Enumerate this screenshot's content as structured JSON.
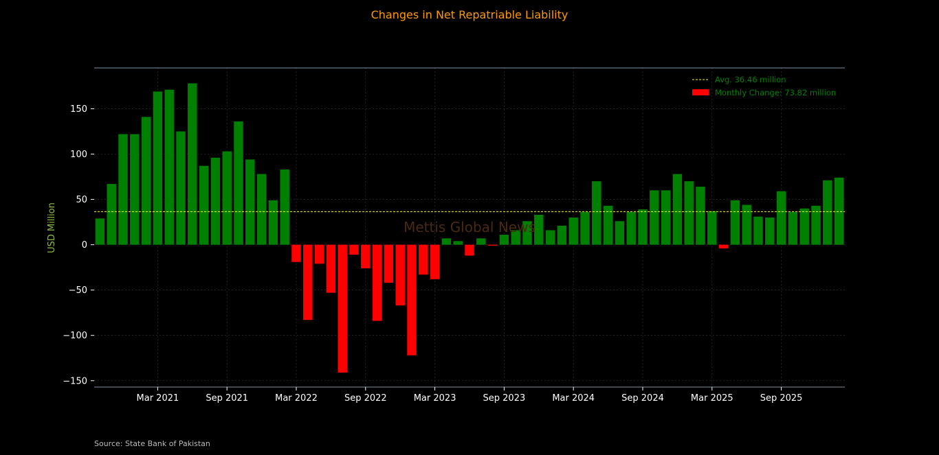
{
  "chart_data": {
    "type": "bar",
    "title": "Changes in Net Repatriable Liability",
    "ylabel": "USD Million",
    "xlabel": "",
    "ylim": [
      -157,
      195
    ],
    "yticks": [
      -150,
      -100,
      -50,
      0,
      50,
      100,
      150
    ],
    "ytick_labels": [
      "−150",
      "−100",
      "−50",
      "0",
      "50",
      "100",
      "150"
    ],
    "xticks": [
      {
        "label": "Mar 2021",
        "index": 5
      },
      {
        "label": "Sep 2021",
        "index": 11
      },
      {
        "label": "Mar 2022",
        "index": 17
      },
      {
        "label": "Sep 2022",
        "index": 23
      },
      {
        "label": "Mar 2023",
        "index": 29
      },
      {
        "label": "Sep 2023",
        "index": 35
      },
      {
        "label": "Mar 2024",
        "index": 41
      },
      {
        "label": "Sep 2024",
        "index": 47
      },
      {
        "label": "Mar 2025",
        "index": 53
      },
      {
        "label": "Sep 2025",
        "index": 59
      }
    ],
    "categories": [
      "Oct 2020",
      "Nov 2020",
      "Dec 2020",
      "Jan 2021",
      "Feb 2021",
      "Mar 2021",
      "Apr 2021",
      "May 2021",
      "Jun 2021",
      "Jul 2021",
      "Aug 2021",
      "Sep 2021",
      "Oct 2021",
      "Nov 2021",
      "Dec 2021",
      "Jan 2022",
      "Feb 2022",
      "Mar 2022",
      "Apr 2022",
      "May 2022",
      "Jun 2022",
      "Jul 2022",
      "Aug 2022",
      "Sep 2022",
      "Oct 2022",
      "Nov 2022",
      "Dec 2022",
      "Jan 2023",
      "Feb 2023",
      "Mar 2023",
      "Apr 2023",
      "May 2023",
      "Jun 2023",
      "Jul 2023",
      "Aug 2023",
      "Sep 2023",
      "Oct 2023",
      "Nov 2023",
      "Dec 2023",
      "Jan 2024",
      "Feb 2024",
      "Mar 2024",
      "Apr 2024",
      "May 2024",
      "Jun 2024",
      "Jul 2024",
      "Aug 2024",
      "Sep 2024",
      "Oct 2024",
      "Nov 2024",
      "Dec 2024",
      "Jan 2025",
      "Feb 2025",
      "Mar 2025",
      "Apr 2025",
      "May 2025",
      "Jun 2025",
      "Jul 2025",
      "Aug 2025",
      "Sep 2025",
      "Oct 2025",
      "Nov 2025",
      "Dec 2025",
      "Jan 2026",
      "Feb 2026"
    ],
    "values": [
      29,
      67,
      122,
      122,
      141,
      169,
      171,
      125,
      178,
      87,
      96,
      103,
      136,
      94,
      78,
      49,
      83,
      -19,
      -83,
      -21,
      -53,
      -141,
      -11,
      -26,
      -84,
      -42,
      -67,
      -122,
      -33,
      -38,
      7,
      4,
      -12,
      7,
      -1,
      11,
      16,
      26,
      33,
      16,
      21,
      30,
      36,
      70,
      43,
      26,
      36,
      39,
      60,
      60,
      78,
      70,
      64,
      37,
      -4,
      49,
      44,
      31,
      30,
      59,
      36,
      40,
      43,
      71,
      74
    ],
    "average": 36.46,
    "legend": [
      {
        "label": "Avg. 36.46 million",
        "style": "dashed-line",
        "color": "#ffff00"
      },
      {
        "label": "Monthly Change: 73.82 million",
        "style": "bar",
        "color": "#ff0000"
      }
    ],
    "legend_position": "top-right",
    "grid": true,
    "watermark": "Mettis Global News",
    "colors": {
      "positive": "#008000",
      "negative": "#ff0000",
      "average_line": "#ffff00",
      "title": "#ff9900",
      "ylabel": "#8fbc3f",
      "legend_text": "#008000",
      "watermark": "#4a2a10",
      "background": "#000000"
    }
  },
  "footer": {
    "source": "Source: State Bank of Pakistan"
  }
}
